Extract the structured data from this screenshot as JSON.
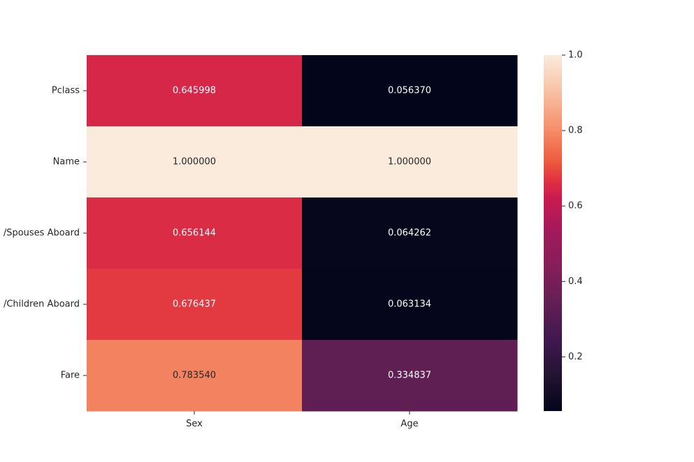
{
  "chart_data": {
    "type": "heatmap",
    "title": "",
    "xlabel": "",
    "ylabel": "",
    "columns": [
      "Sex",
      "Age"
    ],
    "rows": [
      "Pclass",
      "Name",
      "Siblings/Spouses Aboard",
      "Parents/Children Aboard",
      "Fare"
    ],
    "row_tick_labels_visible": [
      "Pclass",
      "Name",
      "/Spouses Aboard",
      "/Children Aboard",
      "Fare"
    ],
    "values": [
      [
        0.645998,
        0.05637
      ],
      [
        1.0,
        1.0
      ],
      [
        0.656144,
        0.064262
      ],
      [
        0.676437,
        0.063134
      ],
      [
        0.78354,
        0.334837
      ]
    ],
    "annotations": [
      [
        "0.645998",
        "0.056370"
      ],
      [
        "1.000000",
        "1.000000"
      ],
      [
        "0.656144",
        "0.064262"
      ],
      [
        "0.676437",
        "0.063134"
      ],
      [
        "0.783540",
        "0.334837"
      ]
    ],
    "colormap": "rocket",
    "colorbar": {
      "vmin": 0.05637,
      "vmax": 1.0,
      "ticks": [
        0.2,
        0.4,
        0.6,
        0.8,
        1.0
      ],
      "tick_labels": [
        "0.2",
        "0.4",
        "0.6",
        "0.8",
        "1.0"
      ]
    },
    "colormap_stops": [
      {
        "v": 0.0,
        "c": "#03051a"
      },
      {
        "v": 0.1,
        "c": "#221331"
      },
      {
        "v": 0.2,
        "c": "#40184f"
      },
      {
        "v": 0.3,
        "c": "#611f53"
      },
      {
        "v": 0.4,
        "c": "#841e5a"
      },
      {
        "v": 0.5,
        "c": "#a11a5b"
      },
      {
        "v": 0.6,
        "c": "#cb1b4f"
      },
      {
        "v": 0.65,
        "c": "#e13342"
      },
      {
        "v": 0.7,
        "c": "#ed5a3d"
      },
      {
        "v": 0.8,
        "c": "#f6926e"
      },
      {
        "v": 0.9,
        "c": "#f7c2a5"
      },
      {
        "v": 1.0,
        "c": "#faebdd"
      }
    ],
    "annotation_dark_text_color": "#262626",
    "annotation_light_text_color": "#ffffff"
  }
}
